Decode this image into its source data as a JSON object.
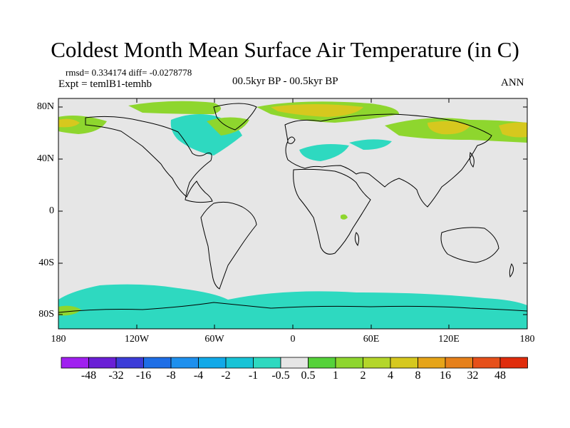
{
  "title": "Coldest Month Mean Surface Air Temperature (in C)",
  "stats_text": "rmsd= 0.334174 diff= -0.0278778",
  "expt_text": "Expt = temlB1-temhb",
  "period_text": "00.5kyr BP - 00.5kyr BP",
  "season_text": "ANN",
  "lat_labels": [
    "80N",
    "40N",
    "0",
    "40S",
    "80S"
  ],
  "lon_labels": [
    "180",
    "120W",
    "60W",
    "0",
    "60E",
    "120E",
    "180"
  ],
  "colorbar": {
    "labels": [
      "-48",
      "-32",
      "-16",
      "-8",
      "-4",
      "-2",
      "-1",
      "-0.5",
      "0.5",
      "1",
      "2",
      "4",
      "8",
      "16",
      "32",
      "48"
    ],
    "colors": [
      "#a020f0",
      "#6a1fd6",
      "#3c3cd8",
      "#1e6ee6",
      "#1e90ee",
      "#11a9e8",
      "#17c3d6",
      "#2ed9c0",
      "#e6e6e6",
      "#55d23a",
      "#8ed62e",
      "#b4d62a",
      "#d6c81e",
      "#e6a418",
      "#e6801a",
      "#e6501a",
      "#e02c0c"
    ]
  },
  "colors": {
    "background": "#e6e6e6",
    "coast": "#000000",
    "negative": "#2ed9c0",
    "positive": "#8ed62e",
    "warm": "#d6c81e"
  }
}
